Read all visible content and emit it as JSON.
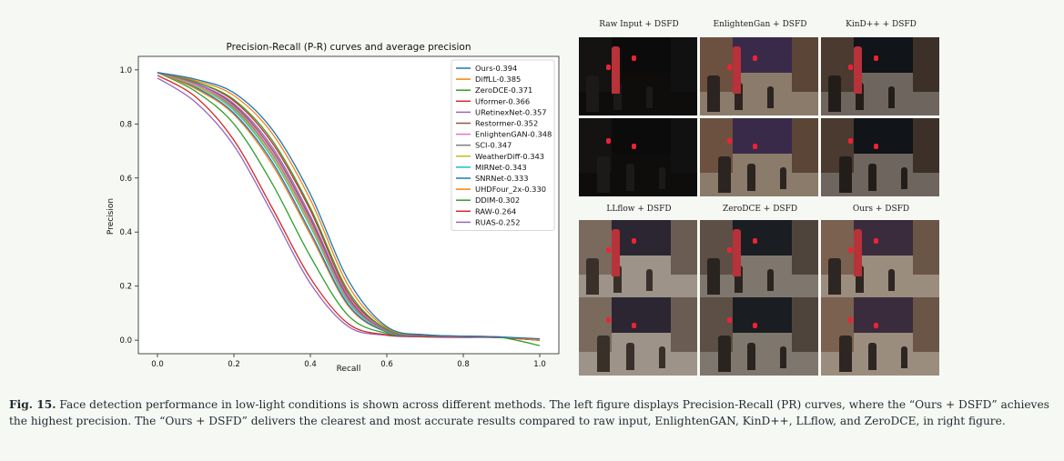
{
  "chart_data": {
    "type": "line",
    "title": "Precision-Recall (P-R) curves and average precision",
    "xlabel": "Recall",
    "ylabel": "Precision",
    "xlim": [
      -0.05,
      1.05
    ],
    "ylim": [
      -0.05,
      1.05
    ],
    "xticks": [
      "0.0",
      "0.2",
      "0.4",
      "0.6",
      "0.8",
      "1.0"
    ],
    "yticks": [
      "0.0",
      "0.2",
      "0.4",
      "0.6",
      "0.8",
      "1.0"
    ],
    "grid": false,
    "legend_position": "top-right",
    "series": [
      {
        "name": "Ours-0.394",
        "color": "#1f77b4",
        "x": [
          0,
          0.1,
          0.2,
          0.3,
          0.4,
          0.5,
          0.6,
          0.7,
          0.8,
          0.9,
          1.0
        ],
        "values": [
          0.99,
          0.965,
          0.915,
          0.78,
          0.54,
          0.22,
          0.05,
          0.02,
          0.015,
          0.012,
          0.005
        ]
      },
      {
        "name": "DiffLL-0.385",
        "color": "#ff7f0e",
        "x": [
          0,
          0.1,
          0.2,
          0.3,
          0.4,
          0.5,
          0.6,
          0.7,
          0.8,
          0.9,
          1.0
        ],
        "values": [
          0.99,
          0.96,
          0.905,
          0.765,
          0.52,
          0.2,
          0.045,
          0.02,
          0.015,
          0.012,
          0.0
        ]
      },
      {
        "name": "ZeroDCE-0.371",
        "color": "#2ca02c",
        "x": [
          0,
          0.1,
          0.2,
          0.3,
          0.4,
          0.5,
          0.6,
          0.7,
          0.8,
          0.9,
          1.0
        ],
        "values": [
          0.99,
          0.955,
          0.89,
          0.74,
          0.49,
          0.18,
          0.04,
          0.02,
          0.015,
          0.01,
          -0.02
        ]
      },
      {
        "name": "Uformer-0.366",
        "color": "#d62728",
        "x": [
          0,
          0.1,
          0.2,
          0.3,
          0.4,
          0.5,
          0.6,
          0.7,
          0.8,
          0.9,
          1.0
        ],
        "values": [
          0.99,
          0.955,
          0.885,
          0.73,
          0.48,
          0.17,
          0.04,
          0.018,
          0.014,
          0.01,
          0.0
        ]
      },
      {
        "name": "URetinexNet-0.357",
        "color": "#9467bd",
        "x": [
          0,
          0.1,
          0.2,
          0.3,
          0.4,
          0.5,
          0.6,
          0.7,
          0.8,
          0.9,
          1.0
        ],
        "values": [
          0.99,
          0.95,
          0.875,
          0.715,
          0.46,
          0.16,
          0.035,
          0.018,
          0.014,
          0.01,
          0.0
        ]
      },
      {
        "name": "Restormer-0.352",
        "color": "#8c564b",
        "x": [
          0,
          0.1,
          0.2,
          0.3,
          0.4,
          0.5,
          0.6,
          0.7,
          0.8,
          0.9,
          1.0
        ],
        "values": [
          0.99,
          0.95,
          0.87,
          0.705,
          0.45,
          0.155,
          0.035,
          0.018,
          0.014,
          0.01,
          0.0
        ]
      },
      {
        "name": "EnlightenGAN-0.348",
        "color": "#e377c2",
        "x": [
          0,
          0.1,
          0.2,
          0.3,
          0.4,
          0.5,
          0.6,
          0.7,
          0.8,
          0.9,
          1.0
        ],
        "values": [
          0.99,
          0.945,
          0.865,
          0.695,
          0.44,
          0.15,
          0.035,
          0.017,
          0.013,
          0.01,
          0.0
        ]
      },
      {
        "name": "SCI-0.347",
        "color": "#7f7f7f",
        "x": [
          0,
          0.1,
          0.2,
          0.3,
          0.4,
          0.5,
          0.6,
          0.7,
          0.8,
          0.9,
          1.0
        ],
        "values": [
          0.99,
          0.945,
          0.86,
          0.69,
          0.435,
          0.148,
          0.035,
          0.017,
          0.013,
          0.01,
          0.0
        ]
      },
      {
        "name": "WeatherDiff-0.343",
        "color": "#bcbd22",
        "x": [
          0,
          0.1,
          0.2,
          0.3,
          0.4,
          0.5,
          0.6,
          0.7,
          0.8,
          0.9,
          1.0
        ],
        "values": [
          0.99,
          0.94,
          0.855,
          0.68,
          0.425,
          0.145,
          0.033,
          0.017,
          0.013,
          0.01,
          0.0
        ]
      },
      {
        "name": "MIRNet-0.343",
        "color": "#17becf",
        "x": [
          0,
          0.1,
          0.2,
          0.3,
          0.4,
          0.5,
          0.6,
          0.7,
          0.8,
          0.9,
          1.0
        ],
        "values": [
          0.99,
          0.94,
          0.85,
          0.675,
          0.42,
          0.14,
          0.033,
          0.017,
          0.013,
          0.01,
          0.0
        ]
      },
      {
        "name": "SNRNet-0.333",
        "color": "#1f77b4",
        "x": [
          0,
          0.1,
          0.2,
          0.3,
          0.4,
          0.5,
          0.6,
          0.7,
          0.8,
          0.9,
          1.0
        ],
        "values": [
          0.99,
          0.935,
          0.84,
          0.66,
          0.4,
          0.13,
          0.03,
          0.016,
          0.012,
          0.01,
          0.0
        ]
      },
      {
        "name": "UHDFour_2x-0.330",
        "color": "#ff7f0e",
        "x": [
          0,
          0.1,
          0.2,
          0.3,
          0.4,
          0.5,
          0.6,
          0.7,
          0.8,
          0.9,
          1.0
        ],
        "values": [
          0.99,
          0.93,
          0.835,
          0.65,
          0.39,
          0.125,
          0.03,
          0.016,
          0.012,
          0.01,
          0.0
        ]
      },
      {
        "name": "DDIM-0.302",
        "color": "#2ca02c",
        "x": [
          0,
          0.1,
          0.2,
          0.3,
          0.4,
          0.5,
          0.6,
          0.7,
          0.8,
          0.9,
          1.0
        ],
        "values": [
          0.99,
          0.92,
          0.8,
          0.58,
          0.31,
          0.09,
          0.025,
          0.015,
          0.012,
          0.01,
          0.0
        ]
      },
      {
        "name": "RAW-0.264",
        "color": "#d62728",
        "x": [
          0,
          0.1,
          0.2,
          0.3,
          0.4,
          0.5,
          0.6,
          0.7,
          0.8,
          0.9,
          1.0
        ],
        "values": [
          0.98,
          0.9,
          0.74,
          0.49,
          0.23,
          0.06,
          0.02,
          0.013,
          0.011,
          0.01,
          0.0
        ]
      },
      {
        "name": "RUAS-0.252",
        "color": "#9467bd",
        "x": [
          0,
          0.1,
          0.2,
          0.3,
          0.4,
          0.5,
          0.6,
          0.7,
          0.8,
          0.9,
          1.0
        ],
        "values": [
          0.97,
          0.88,
          0.72,
          0.47,
          0.21,
          0.05,
          0.018,
          0.012,
          0.01,
          0.01,
          0.0
        ]
      }
    ]
  },
  "grid": {
    "titles": [
      "Raw Input + DSFD",
      "EnlightenGan + DSFD",
      "KinD++ + DSFD",
      "LLflow + DSFD",
      "ZeroDCE + DSFD",
      "Ours + DSFD"
    ]
  },
  "caption": {
    "label": "Fig. 15.",
    "text": " Face detection performance in low-light conditions is shown across different methods. The left figure displays Precision-Recall (PR) curves, where the “Ours + DSFD” achieves the highest precision. The “Ours + DSFD” delivers the clearest and most accurate results compared to raw input, EnlightenGAN, KinD++, LLflow, and ZeroDCE, in right figure."
  }
}
